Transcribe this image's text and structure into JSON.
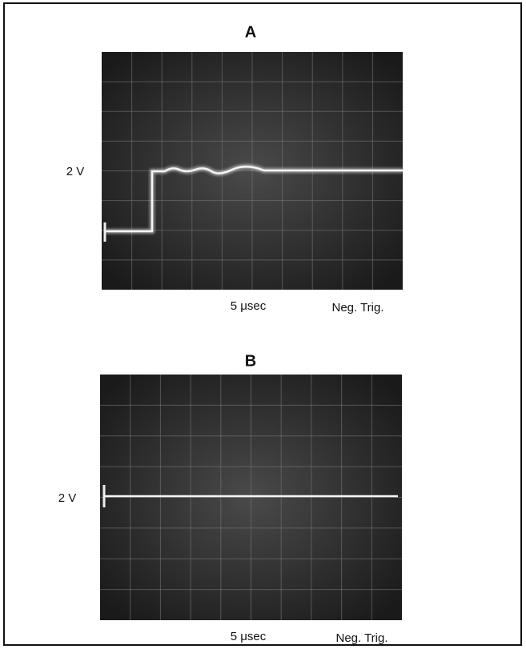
{
  "panels": [
    {
      "title": "A",
      "voltage_label": "2 V",
      "time_label": "5 μsec",
      "trigger_label": "Neg. Trig."
    },
    {
      "title": "B",
      "voltage_label": "2 V",
      "time_label": "5 μsec",
      "trigger_label": "Neg. Trig."
    }
  ]
}
